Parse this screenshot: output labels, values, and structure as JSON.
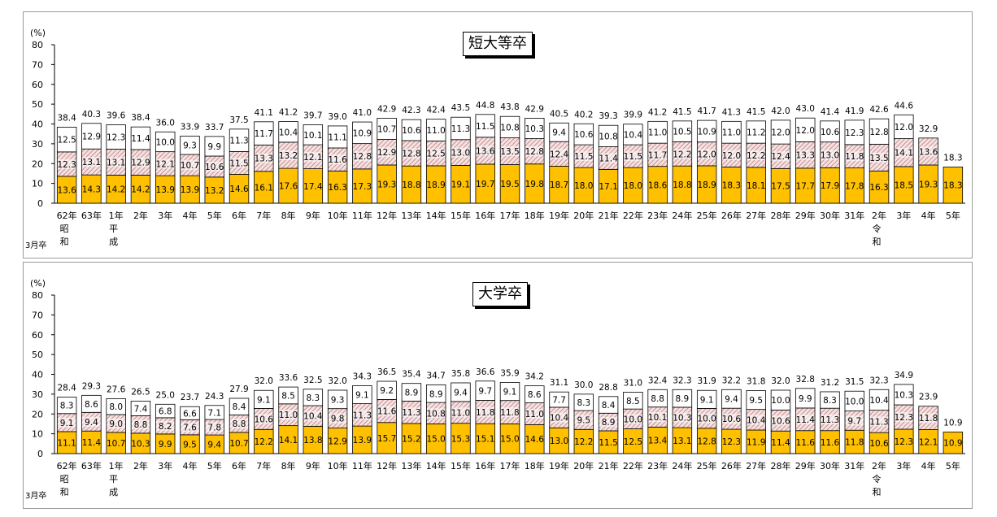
{
  "chart_data": [
    {
      "type": "bar",
      "stacked": true,
      "title": "短大等卒",
      "ylabel": "(%)",
      "ylim": [
        0,
        80
      ],
      "yticks": [
        0,
        10,
        20,
        30,
        40,
        50,
        60,
        70,
        80
      ],
      "row_label": "3月卒",
      "categories": [
        "62年",
        "63年",
        "1年",
        "2年",
        "3年",
        "4年",
        "5年",
        "6年",
        "7年",
        "8年",
        "9年",
        "10年",
        "11年",
        "12年",
        "13年",
        "14年",
        "15年",
        "16年",
        "17年",
        "18年",
        "19年",
        "20年",
        "21年",
        "22年",
        "23年",
        "24年",
        "25年",
        "26年",
        "27年",
        "28年",
        "29年",
        "30年",
        "31年",
        "2年",
        "3年",
        "4年",
        "5年"
      ],
      "era_labels": [
        {
          "index": 0,
          "text": "昭和"
        },
        {
          "index": 2,
          "text": "平成"
        },
        {
          "index": 33,
          "text": "令和"
        }
      ],
      "totals": [
        38.4,
        40.3,
        39.6,
        38.4,
        36.0,
        33.9,
        33.7,
        37.5,
        41.1,
        41.2,
        39.7,
        39.0,
        41.0,
        42.9,
        42.3,
        42.4,
        43.5,
        44.8,
        43.8,
        42.9,
        40.5,
        40.2,
        39.3,
        39.9,
        41.2,
        41.5,
        41.7,
        41.3,
        41.5,
        42.0,
        43.0,
        41.4,
        41.9,
        42.6,
        44.6,
        32.9,
        18.3
      ],
      "series": [
        {
          "color": "#FFC000",
          "pattern": "solid",
          "values": [
            13.6,
            14.3,
            14.2,
            14.2,
            13.9,
            13.9,
            13.2,
            14.6,
            16.1,
            17.6,
            17.4,
            16.3,
            17.3,
            19.3,
            18.8,
            18.9,
            19.1,
            19.7,
            19.5,
            19.8,
            18.7,
            18.0,
            17.1,
            18.0,
            18.6,
            18.8,
            18.9,
            18.3,
            18.1,
            17.5,
            17.7,
            17.9,
            17.8,
            16.3,
            18.5,
            19.3,
            18.3
          ]
        },
        {
          "color": "#D9A0A0",
          "pattern": "hatch",
          "values": [
            12.3,
            13.1,
            13.1,
            12.9,
            12.1,
            10.7,
            10.6,
            11.5,
            13.3,
            13.2,
            12.1,
            11.6,
            12.8,
            12.9,
            12.8,
            12.5,
            13.0,
            13.6,
            13.5,
            12.8,
            12.4,
            11.5,
            11.4,
            11.5,
            11.7,
            12.2,
            12.0,
            12.0,
            12.2,
            12.4,
            13.3,
            13.0,
            11.8,
            13.5,
            14.1,
            13.6,
            null
          ]
        },
        {
          "color": "#FFFFFF",
          "pattern": "solid",
          "values": [
            12.5,
            12.9,
            12.3,
            11.4,
            10.0,
            9.3,
            9.9,
            11.3,
            11.7,
            10.4,
            10.1,
            11.1,
            10.9,
            10.7,
            10.6,
            11.0,
            11.3,
            11.5,
            10.8,
            10.3,
            9.4,
            10.6,
            10.8,
            10.4,
            11.0,
            10.5,
            10.9,
            11.0,
            11.2,
            12.0,
            12.0,
            10.6,
            12.3,
            12.8,
            12.0,
            null,
            null
          ]
        }
      ]
    },
    {
      "type": "bar",
      "stacked": true,
      "title": "大学卒",
      "ylabel": "(%)",
      "ylim": [
        0,
        80
      ],
      "yticks": [
        0,
        10,
        20,
        30,
        40,
        50,
        60,
        70,
        80
      ],
      "row_label": "3月卒",
      "categories": [
        "62年",
        "63年",
        "1年",
        "2年",
        "3年",
        "4年",
        "5年",
        "6年",
        "7年",
        "8年",
        "9年",
        "10年",
        "11年",
        "12年",
        "13年",
        "14年",
        "15年",
        "16年",
        "17年",
        "18年",
        "19年",
        "20年",
        "21年",
        "22年",
        "23年",
        "24年",
        "25年",
        "26年",
        "27年",
        "28年",
        "29年",
        "30年",
        "31年",
        "2年",
        "3年",
        "4年",
        "5年"
      ],
      "era_labels": [
        {
          "index": 0,
          "text": "昭和"
        },
        {
          "index": 2,
          "text": "平成"
        },
        {
          "index": 33,
          "text": "令和"
        }
      ],
      "totals": [
        28.4,
        29.3,
        27.6,
        26.5,
        25.0,
        23.7,
        24.3,
        27.9,
        32.0,
        33.6,
        32.5,
        32.0,
        34.3,
        36.5,
        35.4,
        34.7,
        35.8,
        36.6,
        35.9,
        34.2,
        31.1,
        30.0,
        28.8,
        31.0,
        32.4,
        32.3,
        31.9,
        32.2,
        31.8,
        32.0,
        32.8,
        31.2,
        31.5,
        32.3,
        34.9,
        23.9,
        10.9
      ],
      "series": [
        {
          "color": "#FFC000",
          "pattern": "solid",
          "values": [
            11.1,
            11.4,
            10.7,
            10.3,
            9.9,
            9.5,
            9.4,
            10.7,
            12.2,
            14.1,
            13.8,
            12.9,
            13.9,
            15.7,
            15.2,
            15.0,
            15.3,
            15.1,
            15.0,
            14.6,
            13.0,
            12.2,
            11.5,
            12.5,
            13.4,
            13.1,
            12.8,
            12.3,
            11.9,
            11.4,
            11.6,
            11.6,
            11.8,
            10.6,
            12.3,
            12.1,
            10.9
          ]
        },
        {
          "color": "#D9A0A0",
          "pattern": "hatch",
          "values": [
            9.1,
            9.4,
            9.0,
            8.8,
            8.2,
            7.6,
            7.8,
            8.8,
            10.6,
            11.0,
            10.4,
            9.8,
            11.3,
            11.6,
            11.3,
            10.8,
            11.0,
            11.8,
            11.8,
            11.0,
            10.4,
            9.5,
            8.9,
            10.0,
            10.1,
            10.3,
            10.0,
            10.6,
            10.4,
            10.6,
            11.4,
            11.3,
            9.7,
            11.3,
            12.3,
            11.8,
            null
          ]
        },
        {
          "color": "#FFFFFF",
          "pattern": "solid",
          "values": [
            8.3,
            8.6,
            8.0,
            7.4,
            6.8,
            6.6,
            7.1,
            8.4,
            9.1,
            8.5,
            8.3,
            9.3,
            9.1,
            9.2,
            8.9,
            8.9,
            9.4,
            9.7,
            9.1,
            8.6,
            7.7,
            8.3,
            8.4,
            8.5,
            8.8,
            8.9,
            9.1,
            9.4,
            9.5,
            10.0,
            9.9,
            8.3,
            10.0,
            10.4,
            10.3,
            null,
            null
          ]
        }
      ]
    }
  ]
}
